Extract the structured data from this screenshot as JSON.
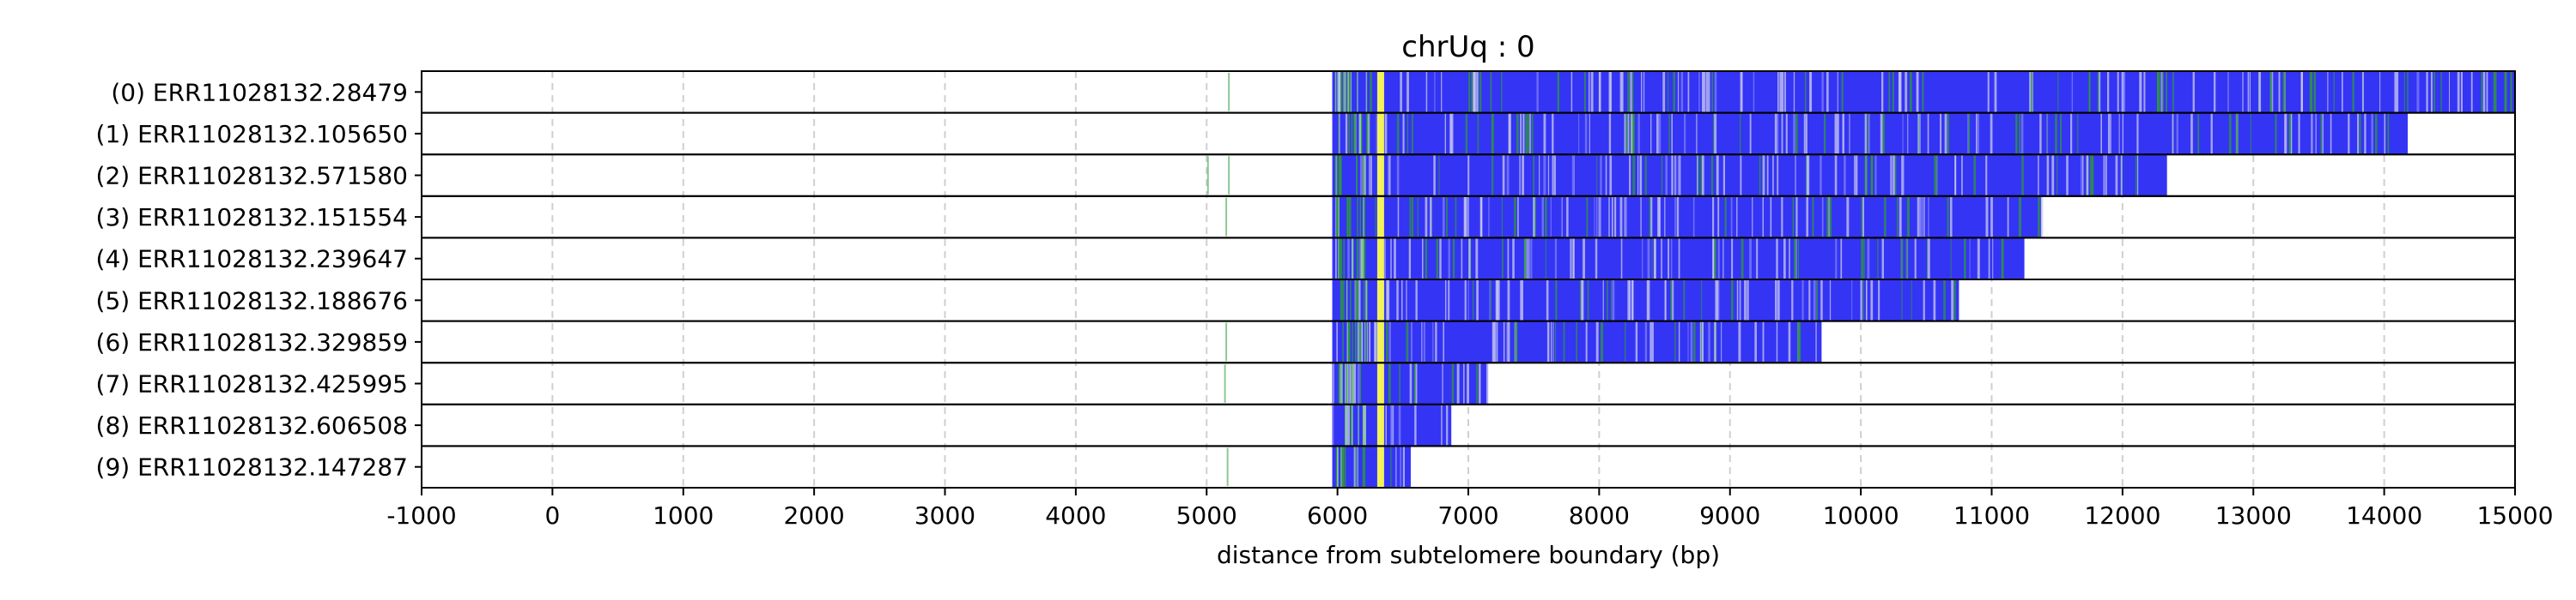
{
  "chart_data": {
    "type": "heatmap",
    "title": "chrUq : 0",
    "xlabel": "distance from subtelomere boundary (bp)",
    "ylabel": "",
    "xlim": [
      -1000,
      15000
    ],
    "xticks": [
      -1000,
      0,
      1000,
      2000,
      3000,
      4000,
      5000,
      6000,
      7000,
      8000,
      9000,
      10000,
      11000,
      12000,
      13000,
      14000,
      15000
    ],
    "xtick_labels": [
      "-1000",
      "0",
      "1000",
      "2000",
      "3000",
      "4000",
      "5000",
      "6000",
      "7000",
      "8000",
      "9000",
      "10000",
      "11000",
      "12000",
      "13000",
      "14000",
      "15000"
    ],
    "grid": "x-dashed",
    "colors": {
      "telomere": "#3434f5",
      "variant_green": "#2e9a3a",
      "variant_yellow": "#f2f25a",
      "light_stripe": "#c9c9f0",
      "background": "#ffffff",
      "gridline": "#cfcfcf"
    },
    "boundary_marker": 6330,
    "reads": [
      {
        "label": "(0) ERR11028132.28479",
        "start": 5960,
        "end": 15000,
        "pre_marks": [
          5170
        ]
      },
      {
        "label": "(1) ERR11028132.105650",
        "start": 5960,
        "end": 14180,
        "pre_marks": []
      },
      {
        "label": "(2) ERR11028132.571580",
        "start": 5960,
        "end": 12340,
        "pre_marks": [
          5010,
          5170
        ]
      },
      {
        "label": "(3) ERR11028132.151554",
        "start": 5960,
        "end": 11380,
        "pre_marks": [
          5150
        ]
      },
      {
        "label": "(4) ERR11028132.239647",
        "start": 5960,
        "end": 11250,
        "pre_marks": []
      },
      {
        "label": "(5) ERR11028132.188676",
        "start": 5960,
        "end": 10750,
        "pre_marks": []
      },
      {
        "label": "(6) ERR11028132.329859",
        "start": 5960,
        "end": 9700,
        "pre_marks": [
          5150
        ]
      },
      {
        "label": "(7) ERR11028132.425995",
        "start": 5960,
        "end": 7150,
        "pre_marks": [
          5140
        ]
      },
      {
        "label": "(8) ERR11028132.606508",
        "start": 5960,
        "end": 6870,
        "pre_marks": []
      },
      {
        "label": "(9) ERR11028132.147287",
        "start": 5960,
        "end": 6560,
        "pre_marks": [
          5160
        ]
      }
    ]
  }
}
